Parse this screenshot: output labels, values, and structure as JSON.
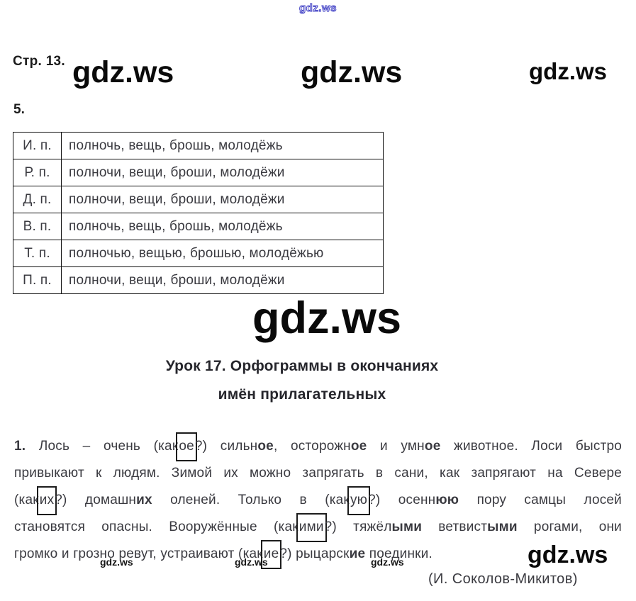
{
  "colors": {
    "watermark_blue": "#3c3cc4",
    "text": "#3a3a40"
  },
  "watermarks": {
    "top": "gdz.ws",
    "header": [
      "gdz.ws",
      "gdz.ws",
      "gdz.ws"
    ],
    "middle": "gdz.ws",
    "footer_small": [
      "gdz.ws",
      "gdz.ws",
      "gdz.ws"
    ],
    "footer_large": "gdz.ws"
  },
  "header": {
    "page_label": "Стр. 13."
  },
  "exercise5": {
    "number": "5.",
    "table": {
      "rows": [
        {
          "case_label": "И. п.",
          "words": "полночь, вещь, брошь, молодёжь"
        },
        {
          "case_label": "Р. п.",
          "words": "полночи, вещи, броши, молодёжи"
        },
        {
          "case_label": "Д. п.",
          "words": "полночи, вещи, броши, молодёжи"
        },
        {
          "case_label": "В. п.",
          "words": "полночь, вещь, брошь, молодёжь"
        },
        {
          "case_label": "Т. п.",
          "words": "полночью, вещью, брошью, молодёжью"
        },
        {
          "case_label": "П. п.",
          "words": "полночи, вещи, броши, молодёжи"
        }
      ]
    }
  },
  "lesson_heading": {
    "line1": "Урок 17. Орфограммы в окончаниях",
    "line2": "имён прилагательных"
  },
  "exercise1": {
    "lines": [
      [
        {
          "t": "1.",
          "bold": true
        },
        {
          "t": " Лось – очень (как"
        },
        {
          "t": "ое",
          "boxed": true
        },
        {
          "t": "?) сильн"
        },
        {
          "t": "ое",
          "bold": true
        },
        {
          "t": ", осторожн"
        },
        {
          "t": "ое",
          "bold": true
        },
        {
          "t": " и умн"
        },
        {
          "t": "ое",
          "bold": true
        },
        {
          "t": " животное. Лоси быстро"
        }
      ],
      [
        {
          "t": "привыкают к людям. Зимой их можно запрягать в сани, как запрягают на Севере"
        }
      ],
      [
        {
          "t": "(как"
        },
        {
          "t": "их",
          "boxed": true
        },
        {
          "t": "?) домашн"
        },
        {
          "t": "их",
          "bold": true
        },
        {
          "t": " оленей. Только в (как"
        },
        {
          "t": "ую",
          "boxed": true
        },
        {
          "t": "?) осенн"
        },
        {
          "t": "юю",
          "bold": true
        },
        {
          "t": " пору самцы лосей"
        }
      ],
      [
        {
          "t": "становятся опасны. Вооружённые (как"
        },
        {
          "t": "ими",
          "boxed": true
        },
        {
          "t": "?) тяжёл"
        },
        {
          "t": "ыми",
          "bold": true
        },
        {
          "t": " ветвист"
        },
        {
          "t": "ыми",
          "bold": true
        },
        {
          "t": " рогами, они"
        }
      ],
      [
        {
          "t": "громко и грозно ревут, устраивают (как"
        },
        {
          "t": "ие",
          "boxed": true
        },
        {
          "t": "?) рыцарск"
        },
        {
          "t": "ие",
          "bold": true
        },
        {
          "t": " поединки."
        }
      ]
    ],
    "attribution": "(И. Соколов-Микитов)"
  }
}
